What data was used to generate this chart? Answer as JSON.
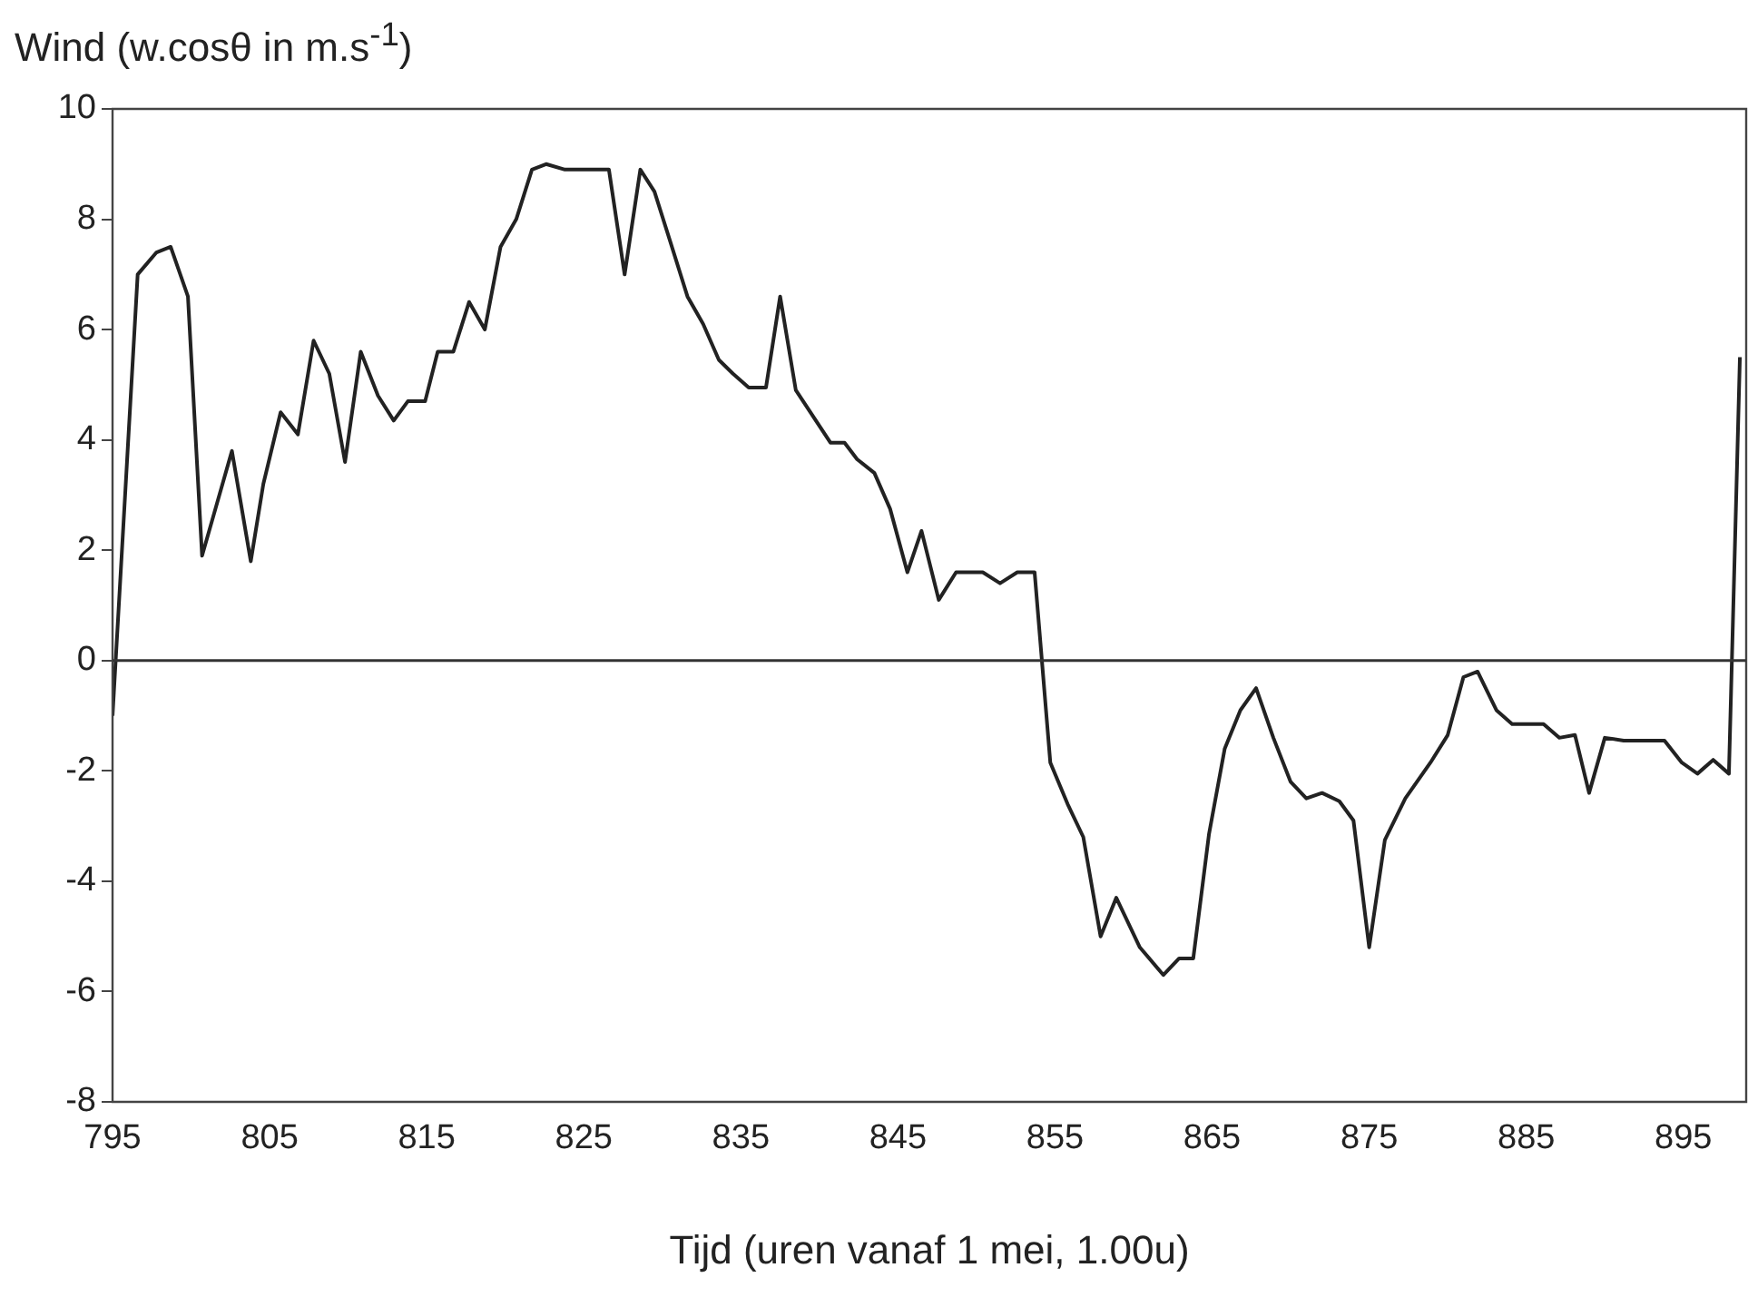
{
  "chart_data": {
    "type": "line",
    "title": "Wind (w.cosθ in m.s$^{-1}$)",
    "xlabel": "Tijd (uren vanaf 1 mei, 1.00u)",
    "x": [
      795,
      796.6,
      797.8,
      798.7,
      799.8,
      800.7,
      802.6,
      803.8,
      804.6,
      805.7,
      806.8,
      807.8,
      808.8,
      809.8,
      810.8,
      811.9,
      812.9,
      813.8,
      814.9,
      815.7,
      816.7,
      817.7,
      818.7,
      819.7,
      820.7,
      821.7,
      822.6,
      823.8,
      826.6,
      827.6,
      828.6,
      829.5,
      830.5,
      831.6,
      832.6,
      833.6,
      834.5,
      835.5,
      836.6,
      837.5,
      838.5,
      840.7,
      841.6,
      842.4,
      843.5,
      844.5,
      845.6,
      846.5,
      847.6,
      848.7,
      850.4,
      851.5,
      852.6,
      853.7,
      854.7,
      855.8,
      856.8,
      857.9,
      858.9,
      860.4,
      861.9,
      862.9,
      863.8,
      864.8,
      865.8,
      866.8,
      867.8,
      868.9,
      870,
      871,
      872,
      873.1,
      874,
      875,
      876,
      877.3,
      878.9,
      880,
      881,
      881.9,
      883.1,
      884.1,
      886.1,
      887.1,
      888.1,
      889,
      890,
      891.2,
      893.8,
      894.9,
      895.9,
      896.9,
      897.9,
      898.6
    ],
    "values": [
      -1,
      7,
      7.4,
      7.5,
      6.6,
      1.9,
      3.8,
      1.8,
      3.2,
      4.5,
      4.1,
      5.8,
      5.2,
      3.6,
      5.6,
      4.8,
      4.35,
      4.7,
      4.7,
      5.6,
      5.6,
      6.5,
      6,
      7.5,
      8,
      8.9,
      9,
      8.9,
      8.9,
      7,
      8.9,
      8.5,
      7.6,
      6.6,
      6.1,
      5.45,
      5.2,
      4.95,
      4.95,
      6.6,
      4.9,
      3.95,
      3.95,
      3.65,
      3.4,
      2.75,
      1.6,
      2.35,
      1.1,
      1.6,
      1.6,
      1.4,
      1.6,
      1.6,
      -1.85,
      -2.6,
      -3.2,
      -5,
      -4.3,
      -5.2,
      -5.7,
      -5.4,
      -5.4,
      -3.15,
      -1.6,
      -0.9,
      -0.5,
      -1.4,
      -2.2,
      -2.5,
      -2.4,
      -2.55,
      -2.9,
      -5.2,
      -3.25,
      -2.5,
      -1.85,
      -1.35,
      -0.3,
      -0.2,
      -0.9,
      -1.15,
      -1.15,
      -1.4,
      -1.35,
      -2.4,
      -1.4,
      -1.45,
      -1.45,
      -1.85,
      -2.05,
      -1.8,
      -2.05,
      5.5
    ],
    "color": "#222222",
    "xlim": [
      795,
      899
    ],
    "xticks": [
      795,
      805,
      815,
      825,
      835,
      845,
      855,
      865,
      875,
      885,
      895
    ],
    "ylim": [
      -8,
      10
    ],
    "yticks": [
      -8,
      -6,
      -4,
      -2,
      0,
      2,
      4,
      6,
      8,
      10
    ],
    "ref_lines": [
      {
        "axis": "y",
        "value": 0,
        "color": "#333333"
      }
    ],
    "grid": false,
    "legend": false,
    "marker": "none",
    "line_style": "solid"
  }
}
